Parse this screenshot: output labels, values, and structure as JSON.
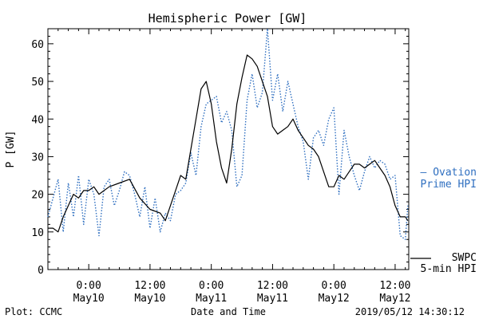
{
  "chart_data": {
    "type": "line",
    "title": "Hemispheric Power [GW]",
    "ylabel": "P [GW]",
    "xlabel": "Date and Time",
    "ylim": [
      0,
      64
    ],
    "yticks": [
      0,
      10,
      20,
      30,
      40,
      50,
      60
    ],
    "xlim": [
      "2019-05-09 16:00",
      "2019-05-12 14:40"
    ],
    "xticks": [
      {
        "t": "2019-05-10 00:00",
        "time": "0:00",
        "date": "May10"
      },
      {
        "t": "2019-05-10 12:00",
        "time": "12:00",
        "date": "May10"
      },
      {
        "t": "2019-05-11 00:00",
        "time": "0:00",
        "date": "May11"
      },
      {
        "t": "2019-05-11 12:00",
        "time": "12:00",
        "date": "May11"
      },
      {
        "t": "2019-05-12 00:00",
        "time": "0:00",
        "date": "May12"
      },
      {
        "t": "2019-05-12 12:00",
        "time": "12:00",
        "date": "May12"
      }
    ],
    "grid": false,
    "series": [
      {
        "name": "Ovation Prime HPI",
        "label_lines": [
          "– Ovation",
          "Prime HPI"
        ],
        "color": "#2f6fc0",
        "style": "dotted",
        "x": [
          "2019-05-09 16:00",
          "2019-05-09 18:00",
          "2019-05-09 19:00",
          "2019-05-09 20:00",
          "2019-05-09 21:00",
          "2019-05-09 22:00",
          "2019-05-09 23:00",
          "2019-05-10 00:00",
          "2019-05-10 01:00",
          "2019-05-10 02:00",
          "2019-05-10 03:00",
          "2019-05-10 04:00",
          "2019-05-10 05:00",
          "2019-05-10 06:00",
          "2019-05-10 07:00",
          "2019-05-10 08:00",
          "2019-05-10 09:00",
          "2019-05-10 10:00",
          "2019-05-10 11:00",
          "2019-05-10 12:00",
          "2019-05-10 13:00",
          "2019-05-10 14:00",
          "2019-05-10 15:00",
          "2019-05-10 16:00",
          "2019-05-10 17:00",
          "2019-05-10 18:00",
          "2019-05-10 19:00",
          "2019-05-10 20:00",
          "2019-05-10 21:00",
          "2019-05-10 22:00",
          "2019-05-10 23:00",
          "2019-05-11 00:00",
          "2019-05-11 01:00",
          "2019-05-11 02:00",
          "2019-05-11 03:00",
          "2019-05-11 04:00",
          "2019-05-11 05:00",
          "2019-05-11 06:00",
          "2019-05-11 07:00",
          "2019-05-11 08:00",
          "2019-05-11 09:00",
          "2019-05-11 10:00",
          "2019-05-11 11:00",
          "2019-05-11 12:00",
          "2019-05-11 13:00",
          "2019-05-11 14:00",
          "2019-05-11 15:00",
          "2019-05-11 16:00",
          "2019-05-11 17:00",
          "2019-05-11 18:00",
          "2019-05-11 19:00",
          "2019-05-11 20:00",
          "2019-05-11 21:00",
          "2019-05-11 22:00",
          "2019-05-11 23:00",
          "2019-05-12 00:00",
          "2019-05-12 01:00",
          "2019-05-12 02:00",
          "2019-05-12 03:00",
          "2019-05-12 04:00",
          "2019-05-12 05:00",
          "2019-05-12 06:00",
          "2019-05-12 07:00",
          "2019-05-12 08:00",
          "2019-05-12 09:00",
          "2019-05-12 10:00",
          "2019-05-12 11:00",
          "2019-05-12 12:00",
          "2019-05-12 13:00",
          "2019-05-12 14:00",
          "2019-05-12 14:30"
        ],
        "y": [
          14,
          24,
          10,
          23,
          14,
          25,
          12,
          24,
          20,
          9,
          22,
          24,
          17,
          21,
          26,
          25,
          20,
          14,
          22,
          11,
          19,
          10,
          15,
          13,
          20,
          21,
          23,
          31,
          25,
          38,
          44,
          45,
          46,
          39,
          42,
          37,
          22,
          25,
          45,
          52,
          43,
          47,
          64,
          45,
          52,
          42,
          50,
          44,
          38,
          34,
          24,
          35,
          37,
          33,
          40,
          43,
          20,
          37,
          30,
          25,
          21,
          26,
          30,
          27,
          29,
          28,
          24,
          25,
          9,
          8,
          17
        ]
      },
      {
        "name": "SWPC 5-min HPI",
        "label_lines": [
          "SWPC",
          "5-min HPI"
        ],
        "color": "#000000",
        "style": "solid",
        "x": [
          "2019-05-09 16:00",
          "2019-05-09 17:00",
          "2019-05-09 18:00",
          "2019-05-09 19:00",
          "2019-05-09 20:00",
          "2019-05-09 21:00",
          "2019-05-09 22:00",
          "2019-05-09 23:00",
          "2019-05-10 00:00",
          "2019-05-10 01:00",
          "2019-05-10 02:00",
          "2019-05-10 04:00",
          "2019-05-10 06:00",
          "2019-05-10 08:00",
          "2019-05-10 10:00",
          "2019-05-10 12:00",
          "2019-05-10 14:00",
          "2019-05-10 15:00",
          "2019-05-10 16:00",
          "2019-05-10 17:00",
          "2019-05-10 18:00",
          "2019-05-10 19:00",
          "2019-05-10 20:00",
          "2019-05-10 21:00",
          "2019-05-10 22:00",
          "2019-05-10 23:00",
          "2019-05-11 00:00",
          "2019-05-11 01:00",
          "2019-05-11 02:00",
          "2019-05-11 03:00",
          "2019-05-11 04:00",
          "2019-05-11 05:00",
          "2019-05-11 06:00",
          "2019-05-11 07:00",
          "2019-05-11 08:00",
          "2019-05-11 09:00",
          "2019-05-11 10:00",
          "2019-05-11 11:00",
          "2019-05-11 12:00",
          "2019-05-11 13:00",
          "2019-05-11 14:00",
          "2019-05-11 15:00",
          "2019-05-11 16:00",
          "2019-05-11 17:00",
          "2019-05-11 18:00",
          "2019-05-11 19:00",
          "2019-05-11 20:00",
          "2019-05-11 21:00",
          "2019-05-11 22:00",
          "2019-05-11 23:00",
          "2019-05-12 00:00",
          "2019-05-12 01:00",
          "2019-05-12 02:00",
          "2019-05-12 03:00",
          "2019-05-12 04:00",
          "2019-05-12 05:00",
          "2019-05-12 06:00",
          "2019-05-12 07:00",
          "2019-05-12 08:00",
          "2019-05-12 09:00",
          "2019-05-12 10:00",
          "2019-05-12 11:00",
          "2019-05-12 12:00",
          "2019-05-12 13:00",
          "2019-05-12 14:00",
          "2019-05-12 14:30"
        ],
        "y": [
          11,
          11,
          10,
          14,
          17,
          20,
          19,
          21,
          21,
          22,
          20,
          22,
          23,
          24,
          19,
          16,
          15,
          13,
          17,
          21,
          25,
          24,
          32,
          40,
          48,
          50,
          44,
          34,
          27,
          23,
          32,
          44,
          51,
          57,
          56,
          54,
          50,
          46,
          38,
          36,
          37,
          38,
          40,
          37,
          35,
          33,
          32,
          30,
          26,
          22,
          22,
          25,
          24,
          26,
          28,
          28,
          27,
          28,
          29,
          27,
          25,
          22,
          17,
          14,
          14,
          13
        ]
      }
    ],
    "annotations": {
      "left": "Plot: CCMC",
      "right": "2019/05/12 14:30:12"
    }
  }
}
